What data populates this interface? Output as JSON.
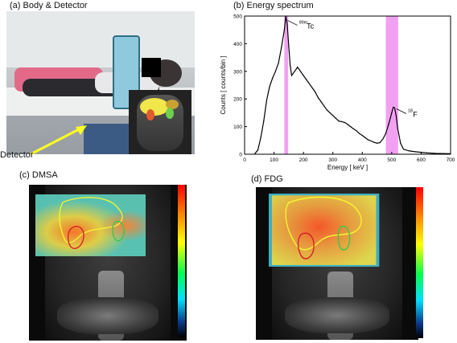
{
  "panels": {
    "a": {
      "label": "(a) Body & Detector",
      "detector_label": "Detector"
    },
    "b": {
      "label": "(b) Energy spectrum"
    },
    "c": {
      "label": "(c) DMSA"
    },
    "d": {
      "label": "(d) FDG"
    }
  },
  "chart_data": {
    "type": "line",
    "title": "(b) Energy spectrum",
    "xlabel": "Energy [ keV ]",
    "ylabel": "Counts [ counts/bin ]",
    "xlim": [
      0,
      700
    ],
    "ylim": [
      0,
      500
    ],
    "xticks": [
      0,
      100,
      200,
      300,
      400,
      500,
      600,
      700
    ],
    "yticks": [
      0,
      100,
      200,
      300,
      400,
      500
    ],
    "highlight_bands": [
      {
        "from": 135,
        "to": 148,
        "color": "#ee82ee"
      },
      {
        "from": 480,
        "to": 522,
        "color": "#ee82ee"
      }
    ],
    "annotations": [
      {
        "sup": "99m",
        "text": "Tc",
        "x": 141,
        "y": 490
      },
      {
        "sup": "18",
        "text": "F",
        "x": 511,
        "y": 170
      }
    ],
    "series": [
      {
        "x": [
          35,
          45,
          55,
          65,
          75,
          85,
          95,
          105,
          115,
          125,
          135,
          140,
          145,
          150,
          155,
          160,
          170,
          180,
          190,
          200,
          210,
          220,
          230,
          240,
          250,
          260,
          270,
          280,
          290,
          300,
          310,
          320,
          330,
          340,
          350,
          360,
          370,
          380,
          390,
          400,
          410,
          420,
          430,
          440,
          450,
          460,
          470,
          480,
          490,
          500,
          505,
          510,
          515,
          520,
          530,
          540,
          560,
          580,
          600,
          620,
          650,
          700
        ],
        "y": [
          2,
          15,
          60,
          120,
          195,
          245,
          275,
          300,
          330,
          385,
          450,
          500,
          470,
          390,
          320,
          285,
          300,
          315,
          300,
          285,
          270,
          255,
          240,
          225,
          205,
          190,
          175,
          160,
          150,
          140,
          130,
          120,
          118,
          115,
          108,
          100,
          92,
          85,
          75,
          68,
          60,
          52,
          48,
          43,
          40,
          42,
          55,
          75,
          110,
          150,
          170,
          168,
          140,
          95,
          40,
          18,
          12,
          9,
          7,
          5,
          3,
          2
        ]
      }
    ]
  }
}
